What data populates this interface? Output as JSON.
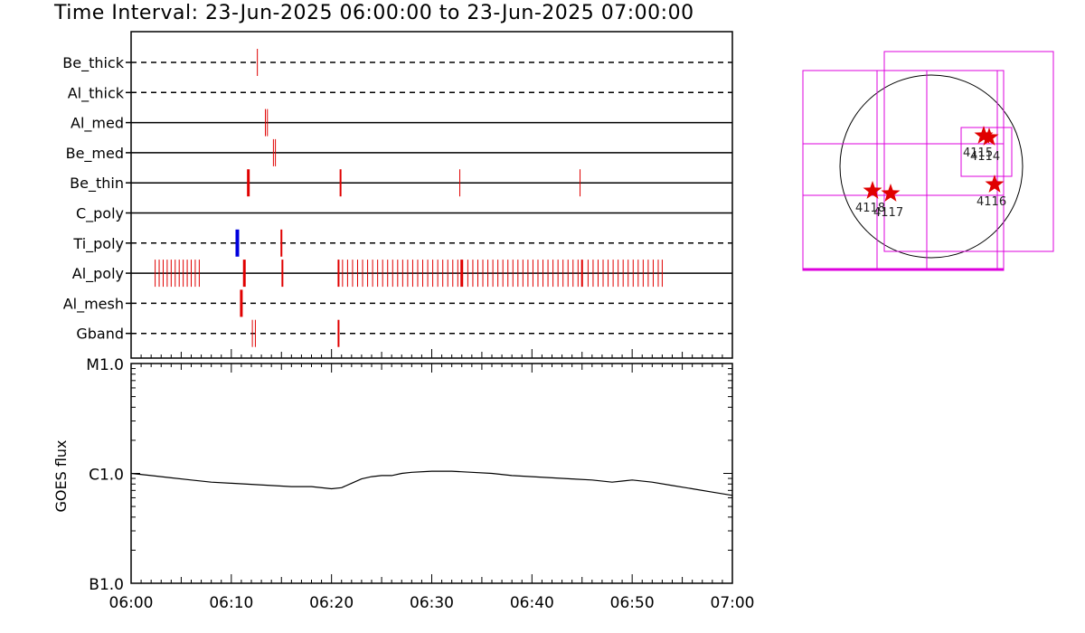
{
  "title": "Time Interval: 23-Jun-2025 06:00:00 to 23-Jun-2025 07:00:00",
  "colors": {
    "event": "#e00000",
    "blue_event": "#0000dd",
    "box": "#dd00dd",
    "line": "#000000"
  },
  "chart_data": [
    {
      "type": "event-timeline",
      "x_range": [
        "06:00",
        "07:00"
      ],
      "channels": [
        {
          "name": "Be_thick",
          "style": "dashed",
          "events": [
            {
              "t": 12.6,
              "c": "red",
              "w": 1
            }
          ]
        },
        {
          "name": "Al_thick",
          "style": "dashed",
          "events": []
        },
        {
          "name": "Al_med",
          "style": "solid",
          "events": [
            {
              "t": 13.4,
              "c": "red",
              "w": 1
            },
            {
              "t": 13.6,
              "c": "red",
              "w": 1
            }
          ]
        },
        {
          "name": "Be_med",
          "style": "solid",
          "events": [
            {
              "t": 14.2,
              "c": "red",
              "w": 1
            },
            {
              "t": 14.4,
              "c": "red",
              "w": 1
            }
          ]
        },
        {
          "name": "Be_thin",
          "style": "solid",
          "events": [
            {
              "t": 11.7,
              "c": "red",
              "w": 3
            },
            {
              "t": 20.9,
              "c": "red",
              "w": 2
            },
            {
              "t": 32.8,
              "c": "red",
              "w": 1
            },
            {
              "t": 44.8,
              "c": "red",
              "w": 1
            }
          ]
        },
        {
          "name": "C_poly",
          "style": "solid",
          "events": []
        },
        {
          "name": "Ti_poly",
          "style": "dashed",
          "events": [
            {
              "t": 10.6,
              "c": "blue",
              "w": 4
            },
            {
              "t": 15.0,
              "c": "red",
              "w": 2
            }
          ]
        },
        {
          "name": "Al_poly",
          "style": "solid",
          "events": [
            {
              "t": 2.4,
              "c": "red",
              "w": 1
            },
            {
              "t": 2.8,
              "c": "red",
              "w": 1
            },
            {
              "t": 3.2,
              "c": "red",
              "w": 1
            },
            {
              "t": 3.6,
              "c": "red",
              "w": 1
            },
            {
              "t": 4.0,
              "c": "red",
              "w": 1
            },
            {
              "t": 4.4,
              "c": "red",
              "w": 1
            },
            {
              "t": 4.8,
              "c": "red",
              "w": 1
            },
            {
              "t": 5.2,
              "c": "red",
              "w": 1
            },
            {
              "t": 5.6,
              "c": "red",
              "w": 1
            },
            {
              "t": 6.0,
              "c": "red",
              "w": 1
            },
            {
              "t": 6.4,
              "c": "red",
              "w": 1
            },
            {
              "t": 6.8,
              "c": "red",
              "w": 1
            },
            {
              "t": 11.3,
              "c": "red",
              "w": 3
            },
            {
              "t": 15.1,
              "c": "red",
              "w": 2
            },
            {
              "t": 20.7,
              "c": "red",
              "w": 2
            },
            {
              "t": 21.1,
              "c": "red",
              "w": 1
            },
            {
              "t": 21.6,
              "c": "red",
              "w": 1
            },
            {
              "t": 22.1,
              "c": "red",
              "w": 1
            },
            {
              "t": 22.6,
              "c": "red",
              "w": 1
            },
            {
              "t": 23.1,
              "c": "red",
              "w": 1
            },
            {
              "t": 23.6,
              "c": "red",
              "w": 1
            },
            {
              "t": 24.1,
              "c": "red",
              "w": 1
            },
            {
              "t": 24.6,
              "c": "red",
              "w": 1
            },
            {
              "t": 25.1,
              "c": "red",
              "w": 1
            },
            {
              "t": 25.6,
              "c": "red",
              "w": 1
            },
            {
              "t": 26.1,
              "c": "red",
              "w": 1
            },
            {
              "t": 26.6,
              "c": "red",
              "w": 1
            },
            {
              "t": 27.1,
              "c": "red",
              "w": 1
            },
            {
              "t": 27.6,
              "c": "red",
              "w": 1
            },
            {
              "t": 28.1,
              "c": "red",
              "w": 1
            },
            {
              "t": 28.6,
              "c": "red",
              "w": 1
            },
            {
              "t": 29.1,
              "c": "red",
              "w": 1
            },
            {
              "t": 29.6,
              "c": "red",
              "w": 1
            },
            {
              "t": 30.1,
              "c": "red",
              "w": 1
            },
            {
              "t": 30.6,
              "c": "red",
              "w": 1
            },
            {
              "t": 31.1,
              "c": "red",
              "w": 1
            },
            {
              "t": 31.6,
              "c": "red",
              "w": 1
            },
            {
              "t": 32.1,
              "c": "red",
              "w": 1
            },
            {
              "t": 32.6,
              "c": "red",
              "w": 1
            },
            {
              "t": 33.0,
              "c": "red",
              "w": 3
            },
            {
              "t": 33.6,
              "c": "red",
              "w": 1
            },
            {
              "t": 34.1,
              "c": "red",
              "w": 1
            },
            {
              "t": 34.6,
              "c": "red",
              "w": 1
            },
            {
              "t": 35.1,
              "c": "red",
              "w": 1
            },
            {
              "t": 35.6,
              "c": "red",
              "w": 1
            },
            {
              "t": 36.1,
              "c": "red",
              "w": 1
            },
            {
              "t": 36.6,
              "c": "red",
              "w": 1
            },
            {
              "t": 37.1,
              "c": "red",
              "w": 1
            },
            {
              "t": 37.6,
              "c": "red",
              "w": 1
            },
            {
              "t": 38.1,
              "c": "red",
              "w": 1
            },
            {
              "t": 38.6,
              "c": "red",
              "w": 1
            },
            {
              "t": 39.1,
              "c": "red",
              "w": 1
            },
            {
              "t": 39.6,
              "c": "red",
              "w": 1
            },
            {
              "t": 40.1,
              "c": "red",
              "w": 1
            },
            {
              "t": 40.6,
              "c": "red",
              "w": 1
            },
            {
              "t": 41.1,
              "c": "red",
              "w": 1
            },
            {
              "t": 41.6,
              "c": "red",
              "w": 1
            },
            {
              "t": 42.1,
              "c": "red",
              "w": 1
            },
            {
              "t": 42.6,
              "c": "red",
              "w": 1
            },
            {
              "t": 43.1,
              "c": "red",
              "w": 1
            },
            {
              "t": 43.6,
              "c": "red",
              "w": 1
            },
            {
              "t": 44.1,
              "c": "red",
              "w": 1
            },
            {
              "t": 44.6,
              "c": "red",
              "w": 1
            },
            {
              "t": 45.0,
              "c": "red",
              "w": 2
            },
            {
              "t": 45.6,
              "c": "red",
              "w": 1
            },
            {
              "t": 46.1,
              "c": "red",
              "w": 1
            },
            {
              "t": 46.6,
              "c": "red",
              "w": 1
            },
            {
              "t": 47.1,
              "c": "red",
              "w": 1
            },
            {
              "t": 47.6,
              "c": "red",
              "w": 1
            },
            {
              "t": 48.1,
              "c": "red",
              "w": 1
            },
            {
              "t": 48.6,
              "c": "red",
              "w": 1
            },
            {
              "t": 49.1,
              "c": "red",
              "w": 1
            },
            {
              "t": 49.6,
              "c": "red",
              "w": 1
            },
            {
              "t": 50.1,
              "c": "red",
              "w": 1
            },
            {
              "t": 50.6,
              "c": "red",
              "w": 1
            },
            {
              "t": 51.1,
              "c": "red",
              "w": 1
            },
            {
              "t": 51.6,
              "c": "red",
              "w": 1
            },
            {
              "t": 52.1,
              "c": "red",
              "w": 1
            },
            {
              "t": 52.6,
              "c": "red",
              "w": 1
            },
            {
              "t": 53.0,
              "c": "red",
              "w": 1
            }
          ]
        },
        {
          "name": "Al_mesh",
          "style": "dashed",
          "events": [
            {
              "t": 11.0,
              "c": "red",
              "w": 3
            }
          ]
        },
        {
          "name": "Gband",
          "style": "dashed",
          "events": [
            {
              "t": 12.1,
              "c": "red",
              "w": 1
            },
            {
              "t": 12.4,
              "c": "red",
              "w": 1
            },
            {
              "t": 20.7,
              "c": "red",
              "w": 2
            }
          ]
        }
      ]
    },
    {
      "type": "line",
      "ylabel": "GOES flux",
      "y_ticks": [
        "M1.0",
        "C1.0",
        "B1.0"
      ],
      "ylim": [
        "B1.0",
        "M1.0"
      ],
      "scale": "log",
      "x_ticks": [
        "06:00",
        "06:10",
        "06:20",
        "06:30",
        "06:40",
        "06:50",
        "07:00"
      ],
      "series": [
        {
          "x": [
            0,
            2,
            4,
            6,
            8,
            10,
            12,
            14,
            16,
            18,
            20,
            21,
            22,
            23,
            24,
            25,
            26,
            27,
            28,
            30,
            32,
            34,
            36,
            38,
            40,
            42,
            44,
            46,
            48,
            49,
            50,
            52,
            54,
            56,
            58,
            60
          ],
          "y": [
            0.0,
            -0.02,
            -0.04,
            -0.06,
            -0.08,
            -0.09,
            -0.1,
            -0.11,
            -0.12,
            -0.12,
            -0.14,
            -0.13,
            -0.09,
            -0.05,
            -0.03,
            -0.02,
            -0.02,
            0.0,
            0.01,
            0.02,
            0.02,
            0.01,
            0.0,
            -0.02,
            -0.03,
            -0.04,
            -0.05,
            -0.06,
            -0.08,
            -0.07,
            -0.06,
            -0.08,
            -0.11,
            -0.14,
            -0.17,
            -0.2
          ]
        }
      ]
    },
    {
      "type": "solar-map",
      "region_labels": [
        "4115",
        "4114",
        "4116",
        "4118",
        "4117"
      ]
    }
  ]
}
